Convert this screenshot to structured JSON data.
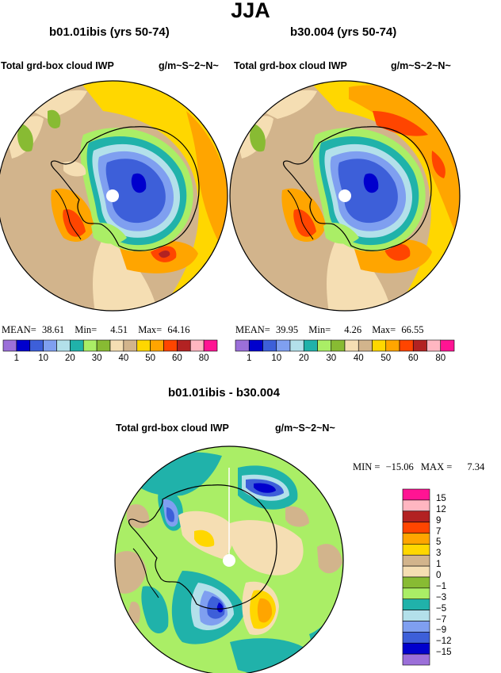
{
  "title": "JJA",
  "panels": [
    {
      "heading": "b01.01ibis (yrs 50-74)",
      "variable": "Total grd-box cloud IWP",
      "units": "g/m~S~2~N~",
      "stats": {
        "mean_label": "MEAN=",
        "mean": "38.61",
        "min_label": "Min=",
        "min": "4.51",
        "max_label": "Max=",
        "max": "64.16"
      }
    },
    {
      "heading": "b30.004 (yrs 50-74)",
      "variable": "Total grd-box cloud IWP",
      "units": "g/m~S~2~N~",
      "stats": {
        "mean_label": "MEAN=",
        "mean": "39.95",
        "min_label": "Min=",
        "min": "4.26",
        "max_label": "Max=",
        "max": "66.55"
      }
    }
  ],
  "field_legend": {
    "colors": [
      "#9b6fd9",
      "#0000cd",
      "#3d5fd9",
      "#7f9ff0",
      "#b3e0ea",
      "#20b2aa",
      "#aaee66",
      "#88bb33",
      "#f5deb3",
      "#d2b48c",
      "#ffd700",
      "#ffa500",
      "#ff4500",
      "#b22222",
      "#ffb6c1",
      "#ff1493"
    ],
    "labels": [
      "1",
      "10",
      "20",
      "30",
      "40",
      "50",
      "60",
      "80"
    ]
  },
  "diff_panel": {
    "heading": "b01.01ibis - b30.004",
    "variable": "Total grd-box cloud IWP",
    "units": "g/m~S~2~N~",
    "stats": {
      "min_label": "MIN =",
      "min": "−15.06",
      "max_label": "MAX =",
      "max": "7.34"
    }
  },
  "diff_legend": {
    "colors": [
      "#ff1493",
      "#ffb6c1",
      "#b22222",
      "#ff4500",
      "#ffa500",
      "#ffd700",
      "#d2b48c",
      "#f5deb3",
      "#88bb33",
      "#aaee66",
      "#20b2aa",
      "#b3e0ea",
      "#7f9ff0",
      "#3d5fd9",
      "#0000cd",
      "#9b6fd9"
    ],
    "labels": [
      "15",
      "12",
      "9",
      "7",
      "5",
      "3",
      "1",
      "0",
      "−1",
      "−3",
      "−5",
      "−7",
      "−9",
      "−12",
      "−15"
    ]
  }
}
